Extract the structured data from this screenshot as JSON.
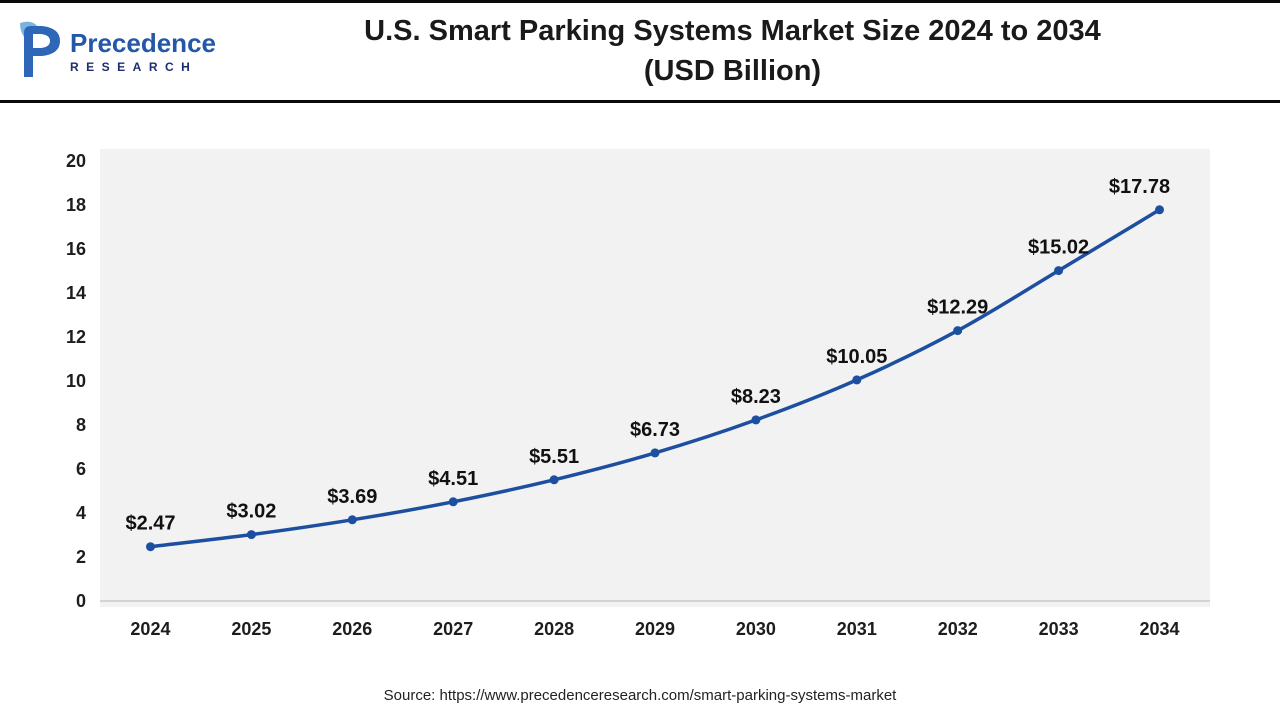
{
  "header": {
    "logo": {
      "brand_name": "Precedence",
      "brand_sub": "RESEARCH",
      "icon": "precedence-p-logo"
    },
    "title_line1": "U.S. Smart Parking Systems Market Size 2024 to 2034",
    "title_line2": "(USD Billion)"
  },
  "chart_data": {
    "type": "line",
    "title": "U.S. Smart Parking Systems Market Size 2024 to 2034 (USD Billion)",
    "categories": [
      "2024",
      "2025",
      "2026",
      "2027",
      "2028",
      "2029",
      "2030",
      "2031",
      "2032",
      "2033",
      "2034"
    ],
    "values": [
      2.47,
      3.02,
      3.69,
      4.51,
      5.51,
      6.73,
      8.23,
      10.05,
      12.29,
      15.02,
      17.78
    ],
    "point_labels": [
      "$2.47",
      "$3.02",
      "$3.69",
      "$4.51",
      "$5.51",
      "$6.73",
      "$8.23",
      "$10.05",
      "$12.29",
      "$15.02",
      "$17.78"
    ],
    "unit": "USD Billion",
    "xlabel": "",
    "ylabel": "",
    "ylim": [
      0,
      20
    ],
    "ytick_step": 2,
    "grid": false,
    "legend": "none",
    "line_color": "#1d4fa1",
    "marker_color": "#1d4fa1",
    "plot_bg": "#f2f2f2",
    "axis_line_color": "#c9c9c9"
  },
  "footer": {
    "source": "Source: https://www.precedenceresearch.com/smart-parking-systems-market"
  }
}
